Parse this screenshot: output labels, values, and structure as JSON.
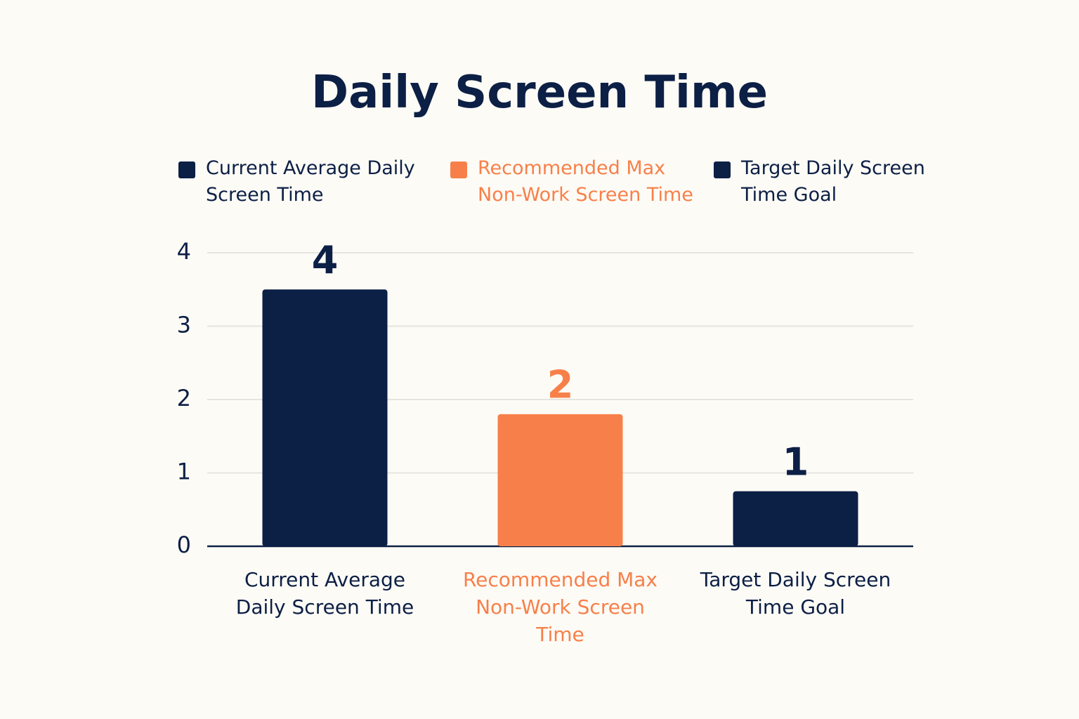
{
  "chart_data": {
    "type": "bar",
    "title": "Daily Screen Time",
    "categories": [
      "Current Average Daily Screen Time",
      "Recommended Max Non-Work Screen Time",
      "Target Daily Screen Time Goal"
    ],
    "values": [
      3.5,
      1.8,
      0.75
    ],
    "value_labels": [
      "4",
      "2",
      "1"
    ],
    "colors": [
      "#0c1f45",
      "#f7804a",
      "#0c1f45"
    ],
    "ylim": [
      0,
      4
    ],
    "yticks": [
      0,
      1,
      2,
      3,
      4
    ],
    "grid": true,
    "legend": "top"
  }
}
